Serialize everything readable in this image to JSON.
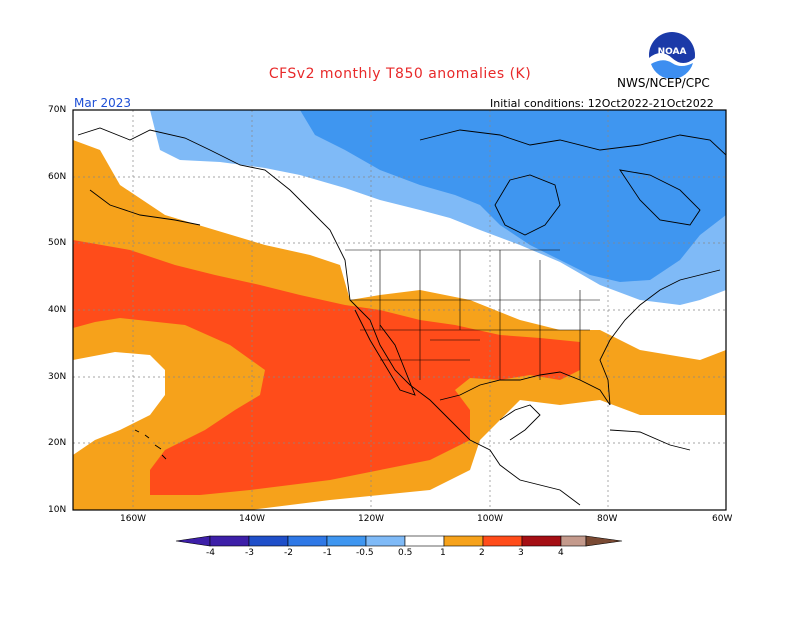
{
  "header": {
    "title": "CFSv2 monthly T850 anomalies (K)",
    "agency": "NWS/NCEP/CPC",
    "logo_text": "NOAA",
    "month": "Mar 2023",
    "initial_conditions": "Initial conditions: 12Oct2022-21Oct2022"
  },
  "map": {
    "lat_labels": [
      "70N",
      "60N",
      "50N",
      "40N",
      "30N",
      "20N",
      "10N"
    ],
    "lon_labels": [
      "160W",
      "140W",
      "120W",
      "100W",
      "80W",
      "60W"
    ],
    "colors": {
      "neg4": "#3d1fa8",
      "neg3": "#1f4fc9",
      "neg2": "#2f78e6",
      "neg1": "#3f96f0",
      "neg05": "#7fbaf7",
      "neutral": "#ffffff",
      "pos05": "#f6a21b",
      "pos1": "#ff4c1a",
      "pos2": "#a50f14",
      "pos3": "#c49a8c",
      "pos4": "#7a4a33"
    }
  },
  "colorbar": {
    "labels": [
      "-4",
      "-3",
      "-2",
      "-1",
      "-0.5",
      "0.5",
      "1",
      "2",
      "3",
      "4"
    ]
  }
}
